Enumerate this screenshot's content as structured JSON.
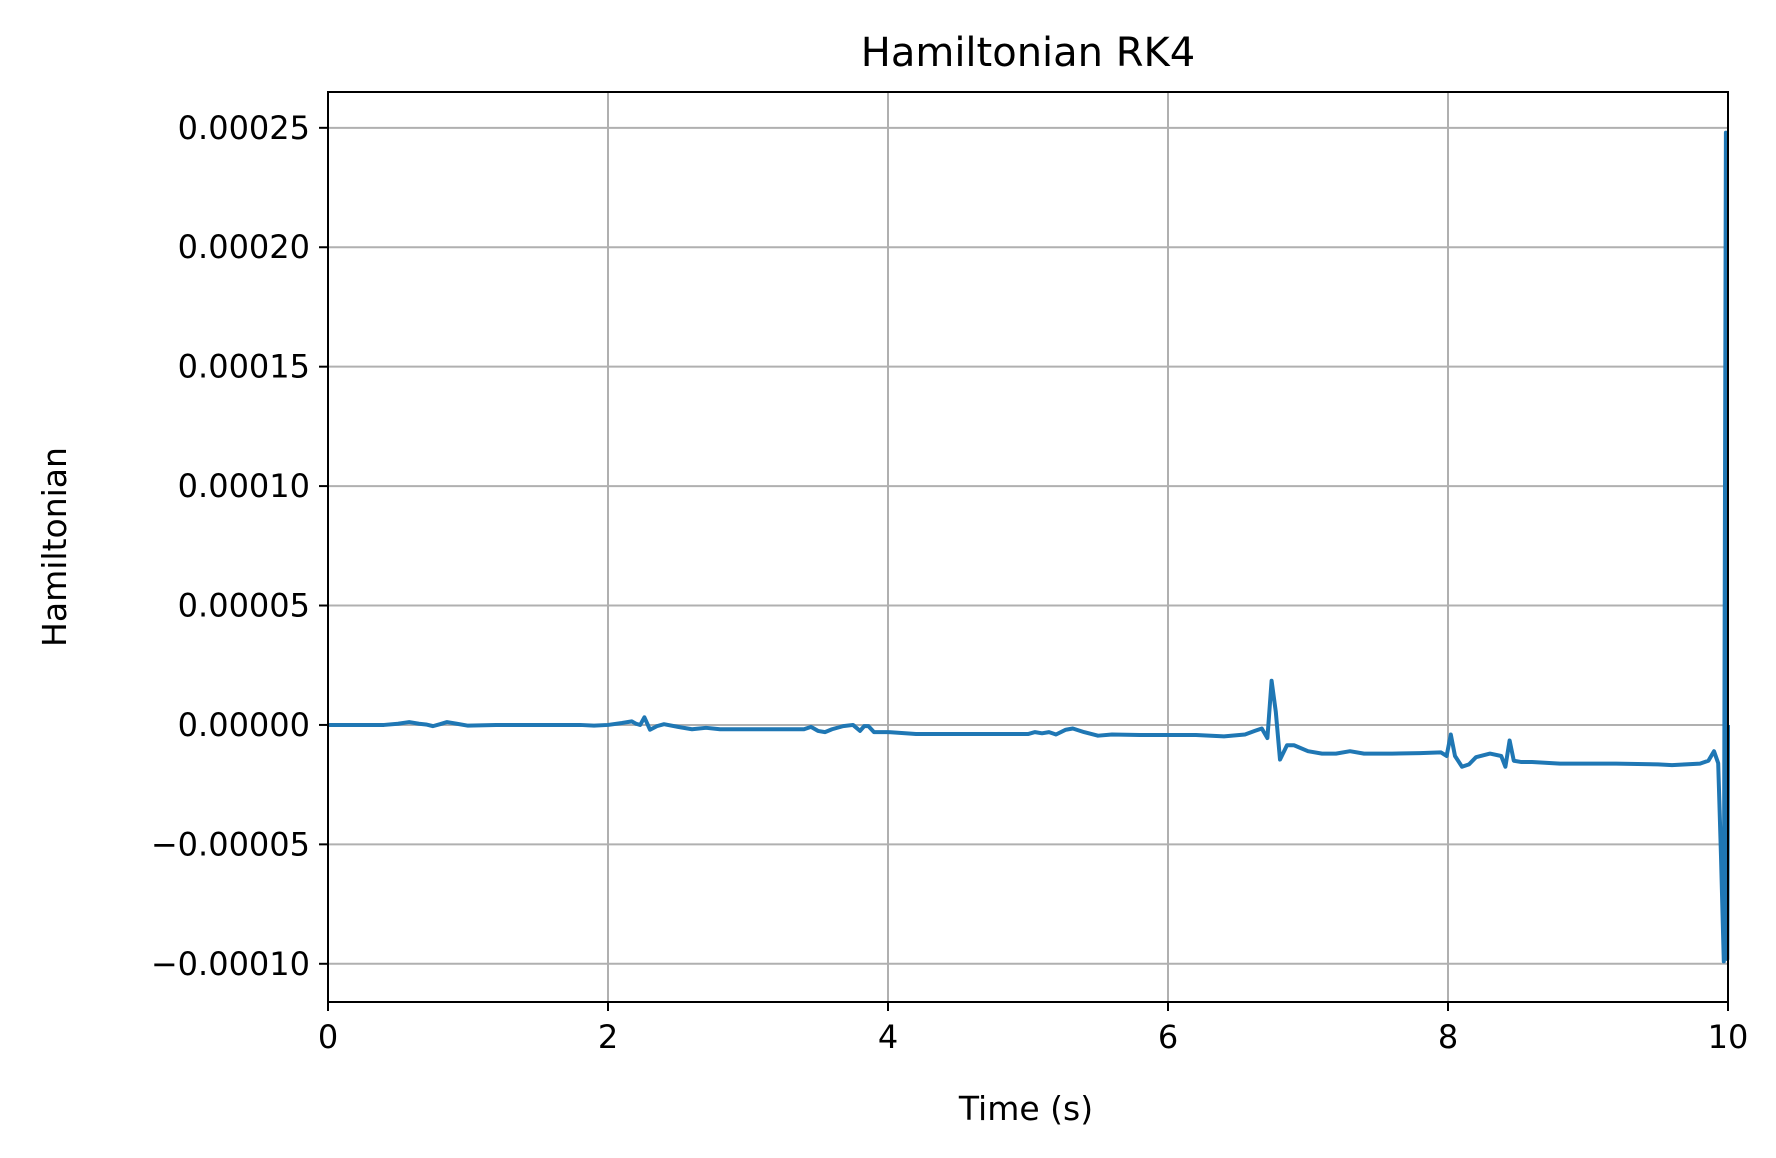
{
  "chart_data": {
    "type": "line",
    "title": "Hamiltonian RK4",
    "xlabel": "Time (s)",
    "ylabel": "Hamiltonian",
    "xlim": [
      0,
      10
    ],
    "ylim": [
      -0.000116,
      0.000265
    ],
    "grid": true,
    "x_ticks": [
      0,
      2,
      4,
      6,
      8,
      10
    ],
    "x_tick_labels": [
      "0",
      "2",
      "4",
      "6",
      "8",
      "10"
    ],
    "y_ticks": [
      -0.0001,
      -5e-05,
      0,
      5e-05,
      0.0001,
      0.00015,
      0.0002,
      0.00025
    ],
    "y_tick_labels": [
      "−0.00010",
      "−0.00005",
      "0.00000",
      "0.00005",
      "0.00010",
      "0.00015",
      "0.00020",
      "0.00025"
    ],
    "series": [
      {
        "color": "#1f77b4",
        "points": [
          [
            0.0,
            0.0
          ],
          [
            0.4,
            0.0
          ],
          [
            0.5,
            5e-07
          ],
          [
            0.58,
            1.2e-06
          ],
          [
            0.65,
            5e-07
          ],
          [
            0.7,
            2e-07
          ],
          [
            0.75,
            -5e-07
          ],
          [
            0.8,
            3e-07
          ],
          [
            0.85,
            1.2e-06
          ],
          [
            0.92,
            5e-07
          ],
          [
            1.0,
            -3e-07
          ],
          [
            1.2,
            0.0
          ],
          [
            1.5,
            0.0
          ],
          [
            1.8,
            0.0
          ],
          [
            1.9,
            -3e-07
          ],
          [
            2.0,
            0.0
          ],
          [
            2.1,
            8e-07
          ],
          [
            2.17,
            1.5e-06
          ],
          [
            2.2,
            5e-07
          ],
          [
            2.23,
            0.0
          ],
          [
            2.26,
            3.2e-06
          ],
          [
            2.3,
            -2e-06
          ],
          [
            2.35,
            -5e-07
          ],
          [
            2.4,
            3e-07
          ],
          [
            2.5,
            -8e-07
          ],
          [
            2.6,
            -1.8e-06
          ],
          [
            2.7,
            -1.2e-06
          ],
          [
            2.8,
            -1.8e-06
          ],
          [
            3.0,
            -1.8e-06
          ],
          [
            3.4,
            -1.8e-06
          ],
          [
            3.45,
            -8e-07
          ],
          [
            3.5,
            -2.5e-06
          ],
          [
            3.55,
            -3e-06
          ],
          [
            3.6,
            -1.8e-06
          ],
          [
            3.68,
            -5e-07
          ],
          [
            3.75,
            0.0
          ],
          [
            3.8,
            -2.5e-06
          ],
          [
            3.83,
            -5e-07
          ],
          [
            3.86,
            -5e-07
          ],
          [
            3.9,
            -3e-06
          ],
          [
            4.0,
            -3e-06
          ],
          [
            4.2,
            -3.8e-06
          ],
          [
            5.0,
            -3.8e-06
          ],
          [
            5.05,
            -3e-06
          ],
          [
            5.1,
            -3.5e-06
          ],
          [
            5.15,
            -3e-06
          ],
          [
            5.2,
            -4e-06
          ],
          [
            5.27,
            -2e-06
          ],
          [
            5.32,
            -1.5e-06
          ],
          [
            5.4,
            -3e-06
          ],
          [
            5.5,
            -4.5e-06
          ],
          [
            5.6,
            -4e-06
          ],
          [
            5.8,
            -4.2e-06
          ],
          [
            6.2,
            -4.2e-06
          ],
          [
            6.4,
            -4.8e-06
          ],
          [
            6.55,
            -4e-06
          ],
          [
            6.62,
            -2.5e-06
          ],
          [
            6.67,
            -1.5e-06
          ],
          [
            6.71,
            -5.5e-06
          ],
          [
            6.74,
            1.85e-05
          ],
          [
            6.77,
            5.5e-06
          ],
          [
            6.8,
            -1.45e-05
          ],
          [
            6.85,
            -8.5e-06
          ],
          [
            6.9,
            -8.5e-06
          ],
          [
            7.0,
            -1.1e-05
          ],
          [
            7.1,
            -1.2e-05
          ],
          [
            7.2,
            -1.2e-05
          ],
          [
            7.3,
            -1.1e-05
          ],
          [
            7.4,
            -1.2e-05
          ],
          [
            7.6,
            -1.2e-05
          ],
          [
            7.8,
            -1.18e-05
          ],
          [
            7.95,
            -1.15e-05
          ],
          [
            7.99,
            -1.3e-05
          ],
          [
            8.02,
            -4e-06
          ],
          [
            8.05,
            -1.3e-05
          ],
          [
            8.1,
            -1.75e-05
          ],
          [
            8.15,
            -1.65e-05
          ],
          [
            8.2,
            -1.35e-05
          ],
          [
            8.3,
            -1.2e-05
          ],
          [
            8.38,
            -1.3e-05
          ],
          [
            8.41,
            -1.75e-05
          ],
          [
            8.44,
            -6.5e-06
          ],
          [
            8.47,
            -1.5e-05
          ],
          [
            8.52,
            -1.55e-05
          ],
          [
            8.6,
            -1.55e-05
          ],
          [
            8.8,
            -1.62e-05
          ],
          [
            9.2,
            -1.62e-05
          ],
          [
            9.5,
            -1.65e-05
          ],
          [
            9.6,
            -1.68e-05
          ],
          [
            9.8,
            -1.62e-05
          ],
          [
            9.86,
            -1.5e-05
          ],
          [
            9.9,
            -1.1e-05
          ],
          [
            9.93,
            -1.6e-05
          ],
          [
            9.95,
            -5.5e-05
          ],
          [
            9.97,
            -9.9e-05
          ],
          [
            9.985,
            0.000248
          ],
          [
            9.995,
            -9.8e-05
          ],
          [
            10.0,
            0.0
          ]
        ]
      }
    ]
  }
}
